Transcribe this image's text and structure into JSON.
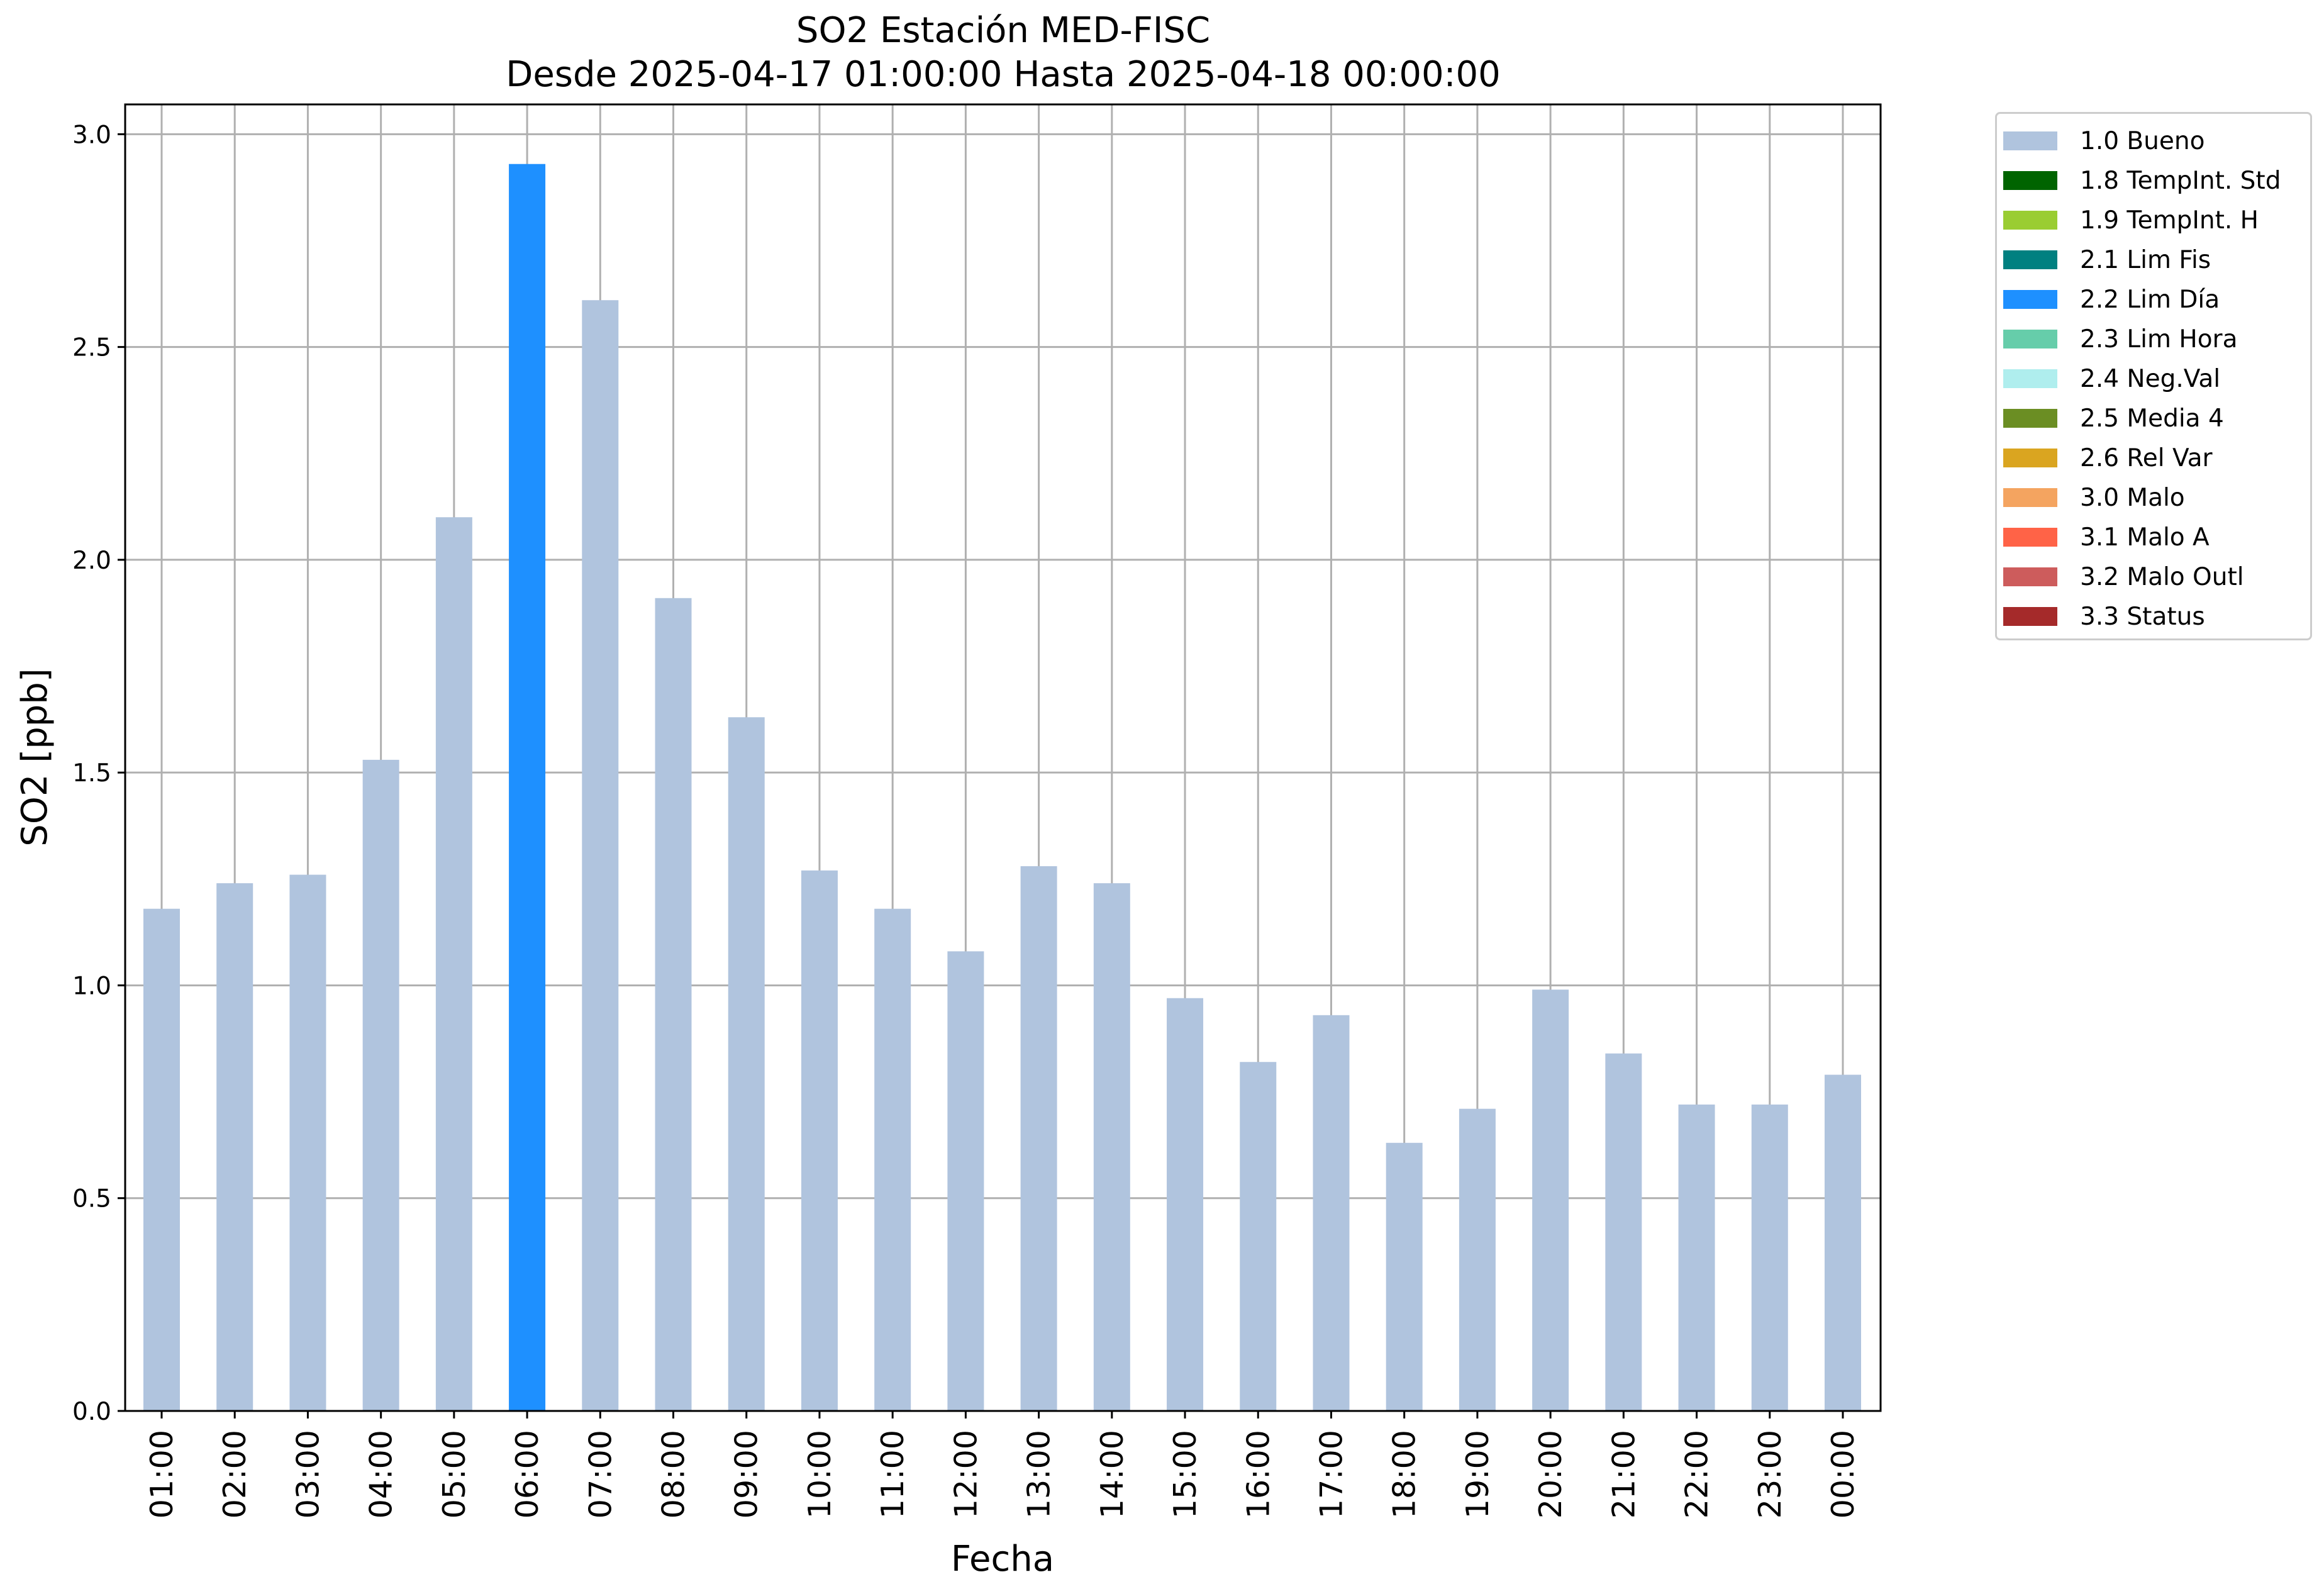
{
  "title": {
    "line1": "SO2 Estación MED-FISC",
    "line2": "Desde 2025-04-17 01:00:00 Hasta 2025-04-18 00:00:00"
  },
  "chart_data": {
    "type": "bar",
    "xlabel": "Fecha",
    "ylabel": "SO2 [ppb]",
    "ylim": [
      0,
      3.07
    ],
    "yticks": [
      "0.0",
      "0.5",
      "1.0",
      "1.5",
      "2.0",
      "2.5",
      "3.0"
    ],
    "grid": true,
    "legend_position": "outside-top-right",
    "categories": [
      "01:00",
      "02:00",
      "03:00",
      "04:00",
      "05:00",
      "06:00",
      "07:00",
      "08:00",
      "09:00",
      "10:00",
      "11:00",
      "12:00",
      "13:00",
      "14:00",
      "15:00",
      "16:00",
      "17:00",
      "18:00",
      "19:00",
      "20:00",
      "21:00",
      "22:00",
      "23:00",
      "00:00"
    ],
    "values": [
      1.18,
      1.24,
      1.26,
      1.53,
      2.1,
      2.93,
      2.61,
      1.91,
      1.63,
      1.27,
      1.18,
      1.08,
      1.28,
      1.24,
      0.97,
      0.82,
      0.93,
      0.63,
      0.71,
      0.99,
      0.84,
      0.72,
      0.72,
      0.79
    ],
    "flags": [
      "1.0 Bueno",
      "1.0 Bueno",
      "1.0 Bueno",
      "1.0 Bueno",
      "1.0 Bueno",
      "2.2 Lim Día",
      "1.0 Bueno",
      "1.0 Bueno",
      "1.0 Bueno",
      "1.0 Bueno",
      "1.0 Bueno",
      "1.0 Bueno",
      "1.0 Bueno",
      "1.0 Bueno",
      "1.0 Bueno",
      "1.0 Bueno",
      "1.0 Bueno",
      "1.0 Bueno",
      "1.0 Bueno",
      "1.0 Bueno",
      "1.0 Bueno",
      "1.0 Bueno",
      "1.0 Bueno",
      "1.0 Bueno"
    ],
    "legend": [
      {
        "label": "1.0 Bueno",
        "color": "#b0c4de"
      },
      {
        "label": "1.8 TempInt. Std",
        "color": "#006400"
      },
      {
        "label": "1.9 TempInt. H",
        "color": "#9acd32"
      },
      {
        "label": "2.1 Lim Fis",
        "color": "#008080"
      },
      {
        "label": "2.2 Lim Día",
        "color": "#1e90ff"
      },
      {
        "label": "2.3 Lim Hora",
        "color": "#66cdaa"
      },
      {
        "label": "2.4 Neg.Val",
        "color": "#afeeee"
      },
      {
        "label": "2.5 Media 4",
        "color": "#6b8e23"
      },
      {
        "label": "2.6 Rel Var",
        "color": "#daa520"
      },
      {
        "label": "3.0 Malo",
        "color": "#f4a460"
      },
      {
        "label": "3.1 Malo A",
        "color": "#ff6347"
      },
      {
        "label": "3.2 Malo Outl",
        "color": "#cd5c5c"
      },
      {
        "label": "3.3 Status",
        "color": "#a52a2a"
      }
    ]
  }
}
